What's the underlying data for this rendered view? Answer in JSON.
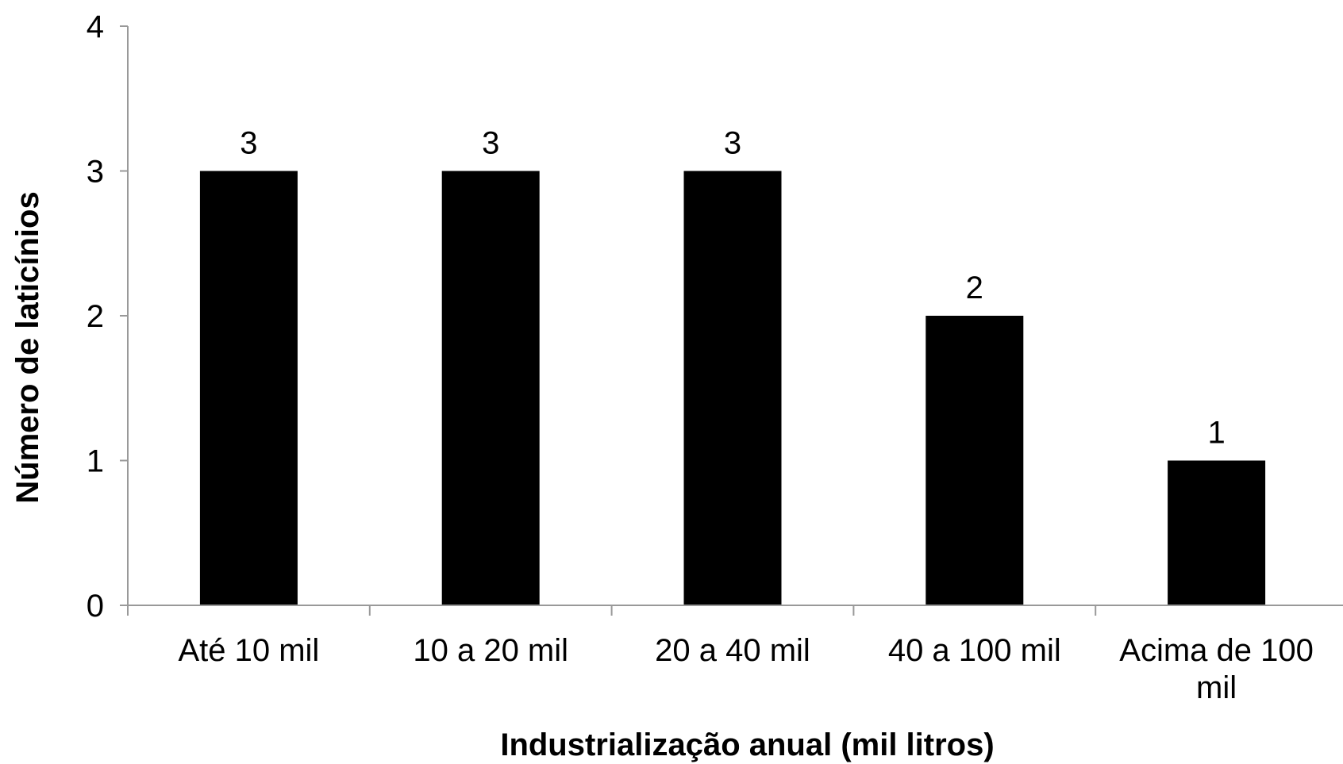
{
  "chart_data": {
    "type": "bar",
    "categories": [
      [
        "Até 10 mil"
      ],
      [
        "10 a 20 mil"
      ],
      [
        "20 a 40 mil"
      ],
      [
        "40 a 100 mil"
      ],
      [
        "Acima de 100",
        "mil"
      ]
    ],
    "values": [
      3,
      3,
      3,
      2,
      1
    ],
    "data_labels": [
      "3",
      "3",
      "3",
      "2",
      "1"
    ],
    "title": "",
    "xlabel": "Industrialização anual (mil litros)",
    "ylabel": "Número de laticínios",
    "ylim": [
      0,
      4
    ],
    "yticks": [
      0,
      1,
      2,
      3,
      4
    ],
    "grid": false,
    "bar_color": "#000000",
    "axis_color": "#999999"
  }
}
